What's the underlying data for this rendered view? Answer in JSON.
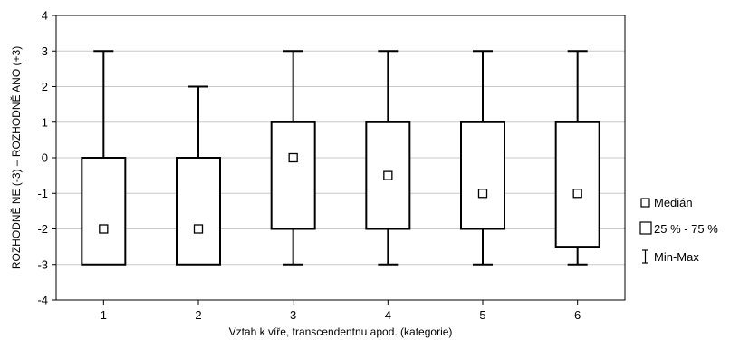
{
  "chart_data": {
    "type": "boxplot",
    "xlabel": "Vztah k víře, transcendentnu apod. (kategorie)",
    "ylabel": "ROZHODNĚ NE (-3) – ROZHODNĚ ANO (+3)",
    "ylim": [
      -4,
      4
    ],
    "yticks": [
      -4,
      -3,
      -2,
      -1,
      0,
      1,
      2,
      3,
      4
    ],
    "grid": true,
    "legend_position": "right",
    "categories": [
      "1",
      "2",
      "3",
      "4",
      "5",
      "6"
    ],
    "boxes": [
      {
        "category": "1",
        "min": -3,
        "q1": -3,
        "median": -2,
        "q3": 0,
        "max": 3
      },
      {
        "category": "2",
        "min": -3,
        "q1": -3,
        "median": -2,
        "q3": 0,
        "max": 2
      },
      {
        "category": "3",
        "min": -3,
        "q1": -2,
        "median": 0,
        "q3": 1,
        "max": 3
      },
      {
        "category": "4",
        "min": -3,
        "q1": -2,
        "median": -0.5,
        "q3": 1,
        "max": 3
      },
      {
        "category": "5",
        "min": -3,
        "q1": -2,
        "median": -1,
        "q3": 1,
        "max": 3
      },
      {
        "category": "6",
        "min": -3,
        "q1": -2.5,
        "median": -1,
        "q3": 1,
        "max": 3
      }
    ],
    "legend": {
      "median": "Medián",
      "box": "25 % - 75 %",
      "whisker": "Min-Max"
    }
  }
}
